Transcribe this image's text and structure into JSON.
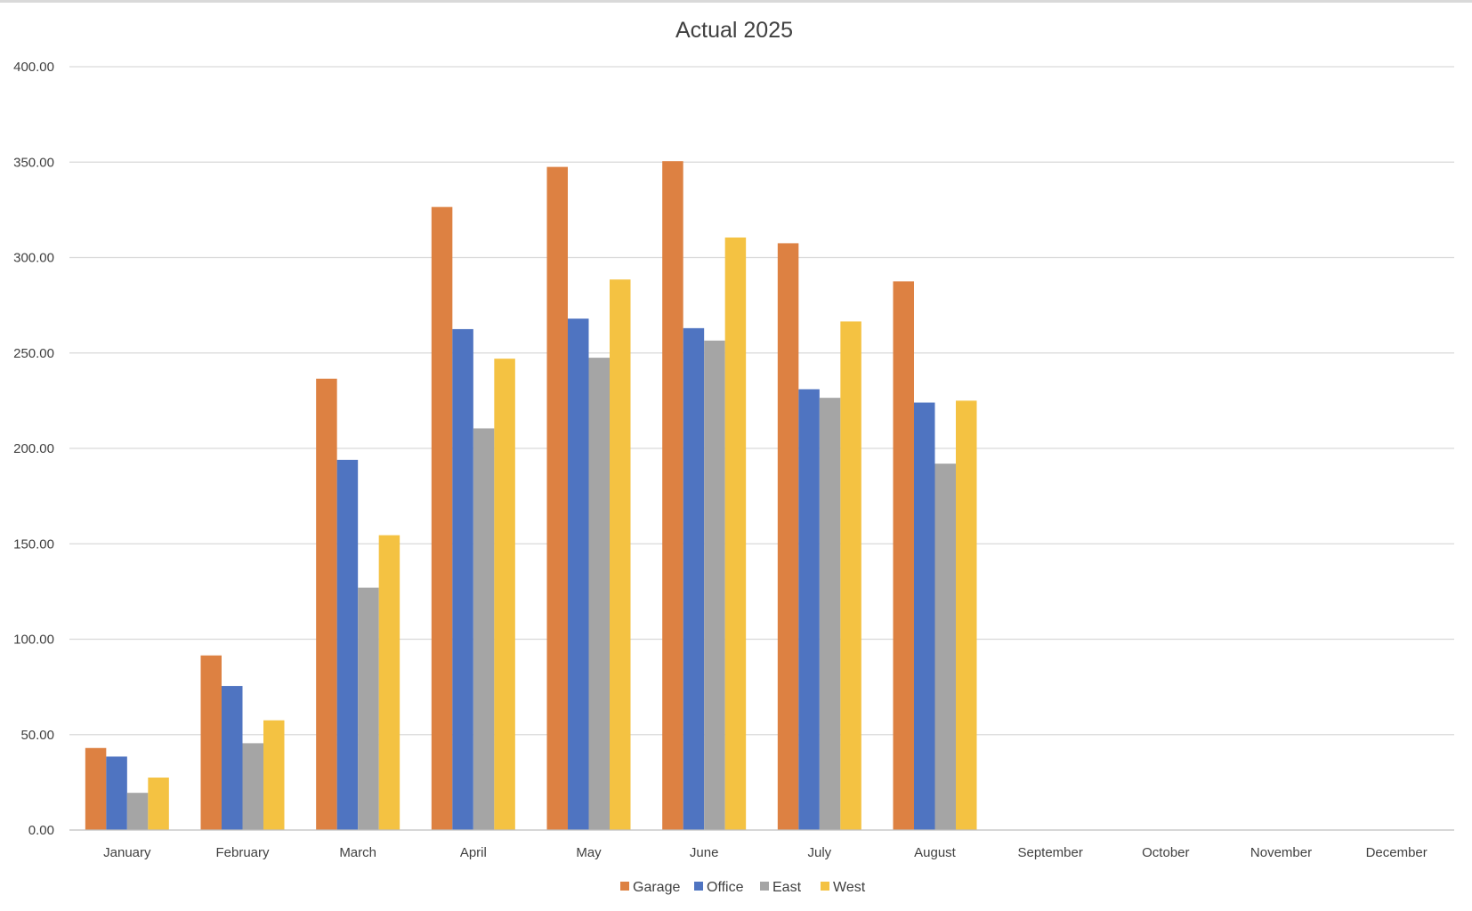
{
  "chart_data": {
    "type": "bar",
    "title": "Actual 2025",
    "xlabel": "",
    "ylabel": "",
    "ylim": [
      0,
      400
    ],
    "yticks": [
      "0.00",
      "50.00",
      "100.00",
      "150.00",
      "200.00",
      "250.00",
      "300.00",
      "350.00",
      "400.00"
    ],
    "grid": true,
    "legend_position": "bottom",
    "categories": [
      "January",
      "February",
      "March",
      "April",
      "May",
      "June",
      "July",
      "August",
      "September",
      "October",
      "November",
      "December"
    ],
    "series": [
      {
        "name": "Garage",
        "color": "#DD8142",
        "values": [
          43,
          91.5,
          236.5,
          326.5,
          347.5,
          350.5,
          307.5,
          287.5,
          null,
          null,
          null,
          null
        ]
      },
      {
        "name": "Office",
        "color": "#4F74C1",
        "values": [
          38.5,
          75.5,
          194,
          262.5,
          268,
          263,
          231,
          224,
          null,
          null,
          null,
          null
        ]
      },
      {
        "name": "East",
        "color": "#A5A5A5",
        "values": [
          19.5,
          45.5,
          127,
          210.5,
          247.5,
          256.5,
          226.5,
          192,
          null,
          null,
          null,
          null
        ]
      },
      {
        "name": "West",
        "color": "#F4C242",
        "values": [
          27.5,
          57.5,
          154.5,
          247,
          288.5,
          310.5,
          266.5,
          225,
          null,
          null,
          null,
          null
        ]
      }
    ]
  }
}
